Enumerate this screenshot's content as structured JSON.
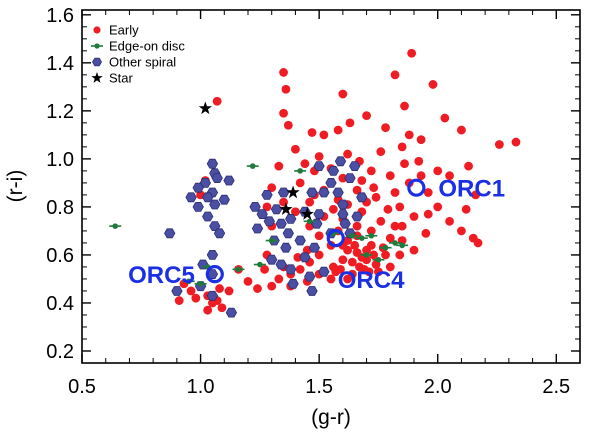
{
  "chart_data": {
    "type": "scatter",
    "title": "",
    "xlabel": "(g-r)",
    "ylabel": "(r-i)",
    "xlim": [
      0.5,
      2.6
    ],
    "ylim": [
      0.15,
      1.62
    ],
    "xticks": [
      0.5,
      1.0,
      1.5,
      2.0,
      2.5
    ],
    "xtick_labels": [
      "0.5",
      "1.0",
      "1.5",
      "2.0",
      "2.5"
    ],
    "yticks": [
      0.2,
      0.4,
      0.6,
      0.8,
      1.0,
      1.2,
      1.4,
      1.6
    ],
    "ytick_labels": [
      "0.2",
      "0.4",
      "0.6",
      "0.8",
      "1.0",
      "1.2",
      "1.4",
      "1.6"
    ],
    "legend_position": "top-left",
    "colors": {
      "early": "#ef1c24",
      "edge": "#1f7a3c",
      "other": "#4b4fa3",
      "star": "#000000",
      "orc": "#1a2fe6"
    },
    "series": [
      {
        "name": "Early",
        "marker": "circle",
        "points": [
          [
            1.89,
            1.44
          ],
          [
            1.82,
            1.35
          ],
          [
            1.86,
            1.22
          ],
          [
            1.98,
            1.31
          ],
          [
            1.35,
            1.36
          ],
          [
            1.36,
            1.29
          ],
          [
            1.07,
            1.24
          ],
          [
            1.37,
            1.14
          ],
          [
            1.35,
            1.19
          ],
          [
            1.6,
            1.27
          ],
          [
            2.03,
            1.17
          ],
          [
            1.47,
            1.11
          ],
          [
            1.52,
            1.1
          ],
          [
            1.58,
            1.12
          ],
          [
            1.63,
            1.15
          ],
          [
            1.7,
            1.18
          ],
          [
            1.78,
            1.13
          ],
          [
            1.85,
            1.05
          ],
          [
            1.93,
            1.08
          ],
          [
            2.1,
            1.12
          ],
          [
            2.33,
            1.07
          ],
          [
            2.26,
            1.06
          ],
          [
            1.88,
            1.1
          ],
          [
            1.02,
            0.91
          ],
          [
            1.0,
            0.85
          ],
          [
            1.33,
            0.97
          ],
          [
            1.4,
            1.04
          ],
          [
            1.44,
            0.98
          ],
          [
            1.5,
            1.01
          ],
          [
            1.55,
            0.96
          ],
          [
            1.6,
            0.92
          ],
          [
            1.62,
            1.02
          ],
          [
            1.67,
            0.99
          ],
          [
            1.72,
            0.95
          ],
          [
            1.76,
            1.03
          ],
          [
            1.8,
            0.93
          ],
          [
            1.86,
            0.98
          ],
          [
            1.88,
            0.9
          ],
          [
            1.92,
            0.99
          ],
          [
            2.0,
            0.95
          ],
          [
            2.05,
            0.93
          ],
          [
            2.13,
            0.97
          ],
          [
            2.16,
            0.85
          ],
          [
            1.96,
            0.86
          ],
          [
            1.82,
            0.86
          ],
          [
            1.74,
            0.84
          ],
          [
            1.66,
            0.87
          ],
          [
            1.58,
            0.83
          ],
          [
            1.52,
            0.87
          ],
          [
            1.46,
            0.82
          ],
          [
            1.42,
            0.9
          ],
          [
            1.3,
            0.88
          ],
          [
            1.28,
            0.8
          ],
          [
            1.3,
            0.72
          ],
          [
            1.52,
            0.76
          ],
          [
            1.6,
            0.75
          ],
          [
            1.68,
            0.78
          ],
          [
            1.76,
            0.74
          ],
          [
            1.82,
            0.72
          ],
          [
            1.9,
            0.76
          ],
          [
            1.96,
            0.77
          ],
          [
            2.05,
            0.74
          ],
          [
            2.1,
            0.7
          ],
          [
            2.15,
            0.67
          ],
          [
            2.17,
            0.65
          ],
          [
            1.95,
            0.69
          ],
          [
            1.9,
            0.62
          ],
          [
            1.85,
            0.66
          ],
          [
            1.78,
            0.6
          ],
          [
            1.72,
            0.64
          ],
          [
            1.66,
            0.61
          ],
          [
            1.6,
            0.58
          ],
          [
            1.7,
            0.58
          ],
          [
            1.74,
            0.56
          ],
          [
            1.67,
            0.55
          ],
          [
            1.62,
            0.62
          ],
          [
            1.55,
            0.64
          ],
          [
            1.5,
            0.6
          ],
          [
            1.46,
            0.57
          ],
          [
            1.42,
            0.54
          ],
          [
            1.38,
            0.52
          ],
          [
            1.33,
            0.5
          ],
          [
            1.3,
            0.47
          ],
          [
            1.38,
            0.47
          ],
          [
            1.45,
            0.49
          ],
          [
            1.5,
            0.52
          ],
          [
            1.55,
            0.5
          ],
          [
            1.64,
            0.52
          ],
          [
            1.69,
            0.54
          ],
          [
            1.75,
            0.53
          ],
          [
            1.8,
            0.55
          ],
          [
            1.84,
            0.6
          ],
          [
            1.66,
            0.68
          ],
          [
            1.62,
            0.66
          ],
          [
            1.58,
            0.7
          ],
          [
            1.72,
            0.7
          ],
          [
            1.8,
            0.67
          ],
          [
            1.16,
            0.54
          ],
          [
            1.2,
            0.49
          ],
          [
            1.24,
            0.46
          ],
          [
            1.27,
            0.54
          ],
          [
            1.03,
            0.43
          ],
          [
            1.05,
            0.4
          ],
          [
            1.07,
            0.41
          ],
          [
            1.09,
            0.38
          ],
          [
            1.03,
            0.37
          ],
          [
            0.93,
            0.48
          ],
          [
            0.96,
            0.45
          ],
          [
            0.98,
            0.42
          ],
          [
            0.91,
            0.41
          ],
          [
            1.08,
            0.46
          ],
          [
            1.12,
            0.45
          ],
          [
            1.28,
            0.6
          ],
          [
            1.35,
            0.55
          ],
          [
            1.36,
            0.63
          ],
          [
            1.41,
            0.59
          ],
          [
            1.45,
            0.62
          ],
          [
            1.56,
            0.55
          ],
          [
            1.59,
            0.54
          ],
          [
            1.64,
            0.57
          ],
          [
            1.7,
            0.62
          ],
          [
            1.77,
            0.63
          ],
          [
            1.85,
            0.72
          ],
          [
            1.55,
            0.9
          ],
          [
            1.48,
            0.95
          ],
          [
            1.68,
            0.91
          ],
          [
            1.7,
            0.82
          ],
          [
            1.79,
            0.79
          ],
          [
            1.84,
            0.8
          ],
          [
            1.62,
            0.81
          ],
          [
            1.56,
            0.79
          ],
          [
            1.66,
            0.72
          ],
          [
            2.0,
            0.8
          ],
          [
            2.12,
            0.79
          ],
          [
            1.93,
            0.93
          ],
          [
            1.5,
            0.68
          ],
          [
            1.46,
            0.72
          ],
          [
            1.4,
            0.78
          ],
          [
            1.35,
            0.82
          ],
          [
            1.48,
            0.85
          ],
          [
            1.73,
            0.88
          ],
          [
            1.71,
            0.53
          ],
          [
            1.62,
            0.5
          ],
          [
            1.57,
            0.53
          ],
          [
            1.73,
            0.6
          ],
          [
            1.65,
            0.64
          ],
          [
            1.6,
            0.64
          ],
          [
            1.68,
            0.59
          ]
        ]
      },
      {
        "name": "Edge-on disc",
        "marker": "dash",
        "points": [
          [
            0.64,
            0.72
          ],
          [
            1.22,
            0.97
          ],
          [
            1.42,
            0.95
          ],
          [
            1.03,
            0.55
          ],
          [
            1.16,
            0.54
          ],
          [
            0.95,
            0.49
          ],
          [
            1.0,
            0.48
          ],
          [
            1.46,
            0.74
          ],
          [
            1.56,
            0.69
          ],
          [
            1.68,
            0.67
          ],
          [
            1.72,
            0.68
          ],
          [
            1.82,
            0.65
          ],
          [
            1.78,
            0.63
          ],
          [
            1.7,
            0.6
          ],
          [
            1.64,
            0.68
          ],
          [
            1.75,
            0.58
          ],
          [
            1.85,
            0.64
          ],
          [
            1.3,
            0.66
          ],
          [
            1.25,
            0.56
          ]
        ]
      },
      {
        "name": "Other spiral",
        "marker": "hexagon",
        "points": [
          [
            1.05,
            0.98
          ],
          [
            1.06,
            0.94
          ],
          [
            1.02,
            0.9
          ],
          [
            1.07,
            0.92
          ],
          [
            1.12,
            0.91
          ],
          [
            0.99,
            0.88
          ],
          [
            1.05,
            0.86
          ],
          [
            0.96,
            0.84
          ],
          [
            1.03,
            0.84
          ],
          [
            1.06,
            0.81
          ],
          [
            1.1,
            0.83
          ],
          [
            0.99,
            0.8
          ],
          [
            1.03,
            0.76
          ],
          [
            1.06,
            0.72
          ],
          [
            1.08,
            0.69
          ],
          [
            0.87,
            0.69
          ],
          [
            1.05,
            0.6
          ],
          [
            1.01,
            0.56
          ],
          [
            1.05,
            0.52
          ],
          [
            0.9,
            0.45
          ],
          [
            1.0,
            0.47
          ],
          [
            1.05,
            0.43
          ],
          [
            1.13,
            0.36
          ],
          [
            1.23,
            0.8
          ],
          [
            1.26,
            0.77
          ],
          [
            1.32,
            0.79
          ],
          [
            1.29,
            0.74
          ],
          [
            1.34,
            0.73
          ],
          [
            1.24,
            0.71
          ],
          [
            1.37,
            0.69
          ],
          [
            1.31,
            0.66
          ],
          [
            1.36,
            0.63
          ],
          [
            1.3,
            0.58
          ],
          [
            1.34,
            0.56
          ],
          [
            1.38,
            0.54
          ],
          [
            1.39,
            0.48
          ],
          [
            1.47,
            0.45
          ],
          [
            1.42,
            0.66
          ],
          [
            1.38,
            0.75
          ],
          [
            1.44,
            0.78
          ],
          [
            1.5,
            0.77
          ],
          [
            1.47,
            0.86
          ],
          [
            1.49,
            0.73
          ],
          [
            1.6,
            0.77
          ],
          [
            1.52,
            0.86
          ],
          [
            1.55,
            0.9
          ],
          [
            1.5,
            0.97
          ],
          [
            1.56,
            0.95
          ],
          [
            1.59,
            0.99
          ],
          [
            1.65,
            0.97
          ],
          [
            1.63,
            0.92
          ],
          [
            1.58,
            0.86
          ],
          [
            1.6,
            0.81
          ],
          [
            1.68,
            0.84
          ],
          [
            1.61,
            0.73
          ],
          [
            1.63,
            0.69
          ],
          [
            1.66,
            0.76
          ],
          [
            1.55,
            0.69
          ],
          [
            1.48,
            0.63
          ],
          [
            1.44,
            0.59
          ],
          [
            1.46,
            0.51
          ],
          [
            1.52,
            0.53
          ],
          [
            1.35,
            0.86
          ],
          [
            1.28,
            0.85
          ]
        ]
      },
      {
        "name": "Star",
        "marker": "star",
        "points": [
          [
            1.02,
            1.21
          ],
          [
            1.39,
            0.86
          ],
          [
            1.36,
            0.79
          ],
          [
            1.45,
            0.77
          ]
        ]
      }
    ],
    "annotations": [
      {
        "label": "ORC1",
        "x": 1.91,
        "y": 0.88,
        "label_position": "right"
      },
      {
        "label": "ORC4",
        "x": 1.57,
        "y": 0.67,
        "label_position": "below-right"
      },
      {
        "label": "ORC5",
        "x": 1.06,
        "y": 0.52,
        "label_position": "left"
      }
    ]
  }
}
